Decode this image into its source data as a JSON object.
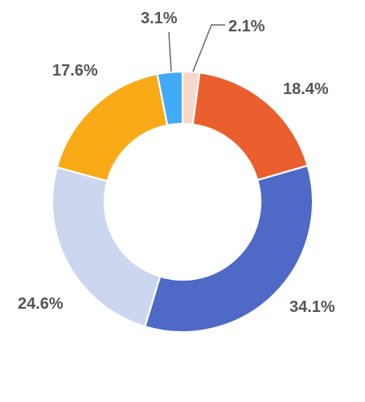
{
  "chart_data": {
    "type": "pie",
    "donut": true,
    "title": "",
    "legend": "none",
    "slices": [
      {
        "value": 2.1,
        "label": "2.1%",
        "color": "#F8D8CB"
      },
      {
        "value": 18.4,
        "label": "18.4%",
        "color": "#EA5F2D"
      },
      {
        "value": 34.1,
        "label": "34.1%",
        "color": "#4E69C6"
      },
      {
        "value": 24.6,
        "label": "24.6%",
        "color": "#CCD6EF"
      },
      {
        "value": 17.6,
        "label": "17.6%",
        "color": "#F9AA17"
      },
      {
        "value": 3.1,
        "label": "3.1%",
        "color": "#41AAF9"
      }
    ]
  }
}
